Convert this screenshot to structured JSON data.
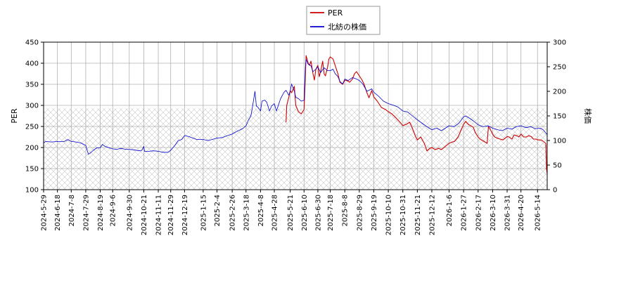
{
  "chart_data": {
    "type": "line",
    "y_left_label": "PER",
    "y_right_label": "株価",
    "y_left_lim": [
      100,
      450
    ],
    "y_left_ticks": [
      100,
      150,
      200,
      250,
      300,
      350,
      400,
      450
    ],
    "y_right_lim": [
      0,
      300
    ],
    "y_right_ticks": [
      0,
      50,
      100,
      150,
      200,
      250,
      300
    ],
    "x_lim": [
      "2024-05-29",
      "2026-05-28"
    ],
    "x_ticks": [
      "2024-5-29",
      "2024-6-18",
      "2024-7-8",
      "2024-7-29",
      "2024-8-19",
      "2024-9-6",
      "2024-9-30",
      "2024-10-21",
      "2024-11-11",
      "2024-11-29",
      "2024-12-19",
      "2025-1-15",
      "2025-2-4",
      "2025-2-26",
      "2025-3-18",
      "2025-4-8",
      "2025-4-28",
      "2025-5-21",
      "2025-6-10",
      "2025-6-30",
      "2025-7-18",
      "2025-8-8",
      "2025-8-29",
      "2025-9-19",
      "2025-10-10",
      "2025-10-31",
      "2025-11-21",
      "2025-12-12",
      "2026-1-6",
      "2026-1-27",
      "2026-2-17",
      "2026-3-10",
      "2026-3-31",
      "2026-4-20",
      "2026-5-14"
    ],
    "grid": true,
    "legend_placement": "top-center",
    "hatch_band_right_axis": [
      0,
      165
    ],
    "series": [
      {
        "name": "PER",
        "axis": "left",
        "color": "#cc0000",
        "points": [
          [
            "2025-5-15",
            260
          ],
          [
            "2025-5-16",
            300
          ],
          [
            "2025-5-19",
            320
          ],
          [
            "2025-5-21",
            335
          ],
          [
            "2025-5-23",
            330
          ],
          [
            "2025-5-27",
            345
          ],
          [
            "2025-5-29",
            300
          ],
          [
            "2025-6-2",
            285
          ],
          [
            "2025-6-6",
            280
          ],
          [
            "2025-6-10",
            290
          ],
          [
            "2025-6-12",
            370
          ],
          [
            "2025-6-13",
            418
          ],
          [
            "2025-6-16",
            400
          ],
          [
            "2025-6-18",
            395
          ],
          [
            "2025-6-20",
            405
          ],
          [
            "2025-6-23",
            375
          ],
          [
            "2025-6-25",
            360
          ],
          [
            "2025-6-27",
            385
          ],
          [
            "2025-6-30",
            395
          ],
          [
            "2025-7-2",
            368
          ],
          [
            "2025-7-4",
            380
          ],
          [
            "2025-7-7",
            405
          ],
          [
            "2025-7-9",
            375
          ],
          [
            "2025-7-11",
            370
          ],
          [
            "2025-7-14",
            390
          ],
          [
            "2025-7-16",
            410
          ],
          [
            "2025-7-18",
            415
          ],
          [
            "2025-7-22",
            410
          ],
          [
            "2025-7-25",
            395
          ],
          [
            "2025-7-29",
            375
          ],
          [
            "2025-8-1",
            355
          ],
          [
            "2025-8-5",
            350
          ],
          [
            "2025-8-8",
            360
          ],
          [
            "2025-8-12",
            358
          ],
          [
            "2025-8-15",
            355
          ],
          [
            "2025-8-19",
            362
          ],
          [
            "2025-8-22",
            375
          ],
          [
            "2025-8-25",
            380
          ],
          [
            "2025-8-29",
            370
          ],
          [
            "2025-9-2",
            360
          ],
          [
            "2025-9-5",
            350
          ],
          [
            "2025-9-9",
            330
          ],
          [
            "2025-9-12",
            318
          ],
          [
            "2025-9-16",
            335
          ],
          [
            "2025-9-19",
            320
          ],
          [
            "2025-9-24",
            310
          ],
          [
            "2025-9-30",
            295
          ],
          [
            "2025-10-6",
            290
          ],
          [
            "2025-10-10",
            285
          ],
          [
            "2025-10-15",
            280
          ],
          [
            "2025-10-20",
            272
          ],
          [
            "2025-10-24",
            265
          ],
          [
            "2025-10-28",
            258
          ],
          [
            "2025-10-31",
            252
          ],
          [
            "2025-11-5",
            255
          ],
          [
            "2025-11-10",
            260
          ],
          [
            "2025-11-14",
            245
          ],
          [
            "2025-11-18",
            228
          ],
          [
            "2025-11-21",
            218
          ],
          [
            "2025-11-26",
            225
          ],
          [
            "2025-12-1",
            210
          ],
          [
            "2025-12-5",
            192
          ],
          [
            "2025-12-9",
            198
          ],
          [
            "2025-12-12",
            200
          ],
          [
            "2025-12-17",
            195
          ],
          [
            "2025-12-22",
            198
          ],
          [
            "2025-12-26",
            195
          ],
          [
            "2026-1-6",
            210
          ],
          [
            "2026-1-9",
            212
          ],
          [
            "2026-1-14",
            215
          ],
          [
            "2026-1-19",
            225
          ],
          [
            "2026-1-23",
            240
          ],
          [
            "2026-1-27",
            255
          ],
          [
            "2026-1-30",
            262
          ],
          [
            "2026-2-3",
            255
          ],
          [
            "2026-2-6",
            252
          ],
          [
            "2026-2-10",
            248
          ],
          [
            "2026-2-13",
            235
          ],
          [
            "2026-2-17",
            225
          ],
          [
            "2026-2-20",
            220
          ],
          [
            "2026-2-25",
            215
          ],
          [
            "2026-3-2",
            210
          ],
          [
            "2026-3-4",
            250
          ],
          [
            "2026-3-6",
            245
          ],
          [
            "2026-3-10",
            232
          ],
          [
            "2026-3-13",
            225
          ],
          [
            "2026-3-17",
            222
          ],
          [
            "2026-3-21",
            220
          ],
          [
            "2026-3-25",
            218
          ],
          [
            "2026-3-31",
            226
          ],
          [
            "2026-4-3",
            225
          ],
          [
            "2026-4-7",
            220
          ],
          [
            "2026-4-10",
            230
          ],
          [
            "2026-4-14",
            228
          ],
          [
            "2026-4-17",
            225
          ],
          [
            "2026-4-20",
            232
          ],
          [
            "2026-4-24",
            225
          ],
          [
            "2026-4-28",
            225
          ],
          [
            "2026-5-1",
            228
          ],
          [
            "2026-5-5",
            226
          ],
          [
            "2026-5-8",
            220
          ],
          [
            "2026-5-12",
            220
          ],
          [
            "2026-5-14",
            218
          ],
          [
            "2026-5-19",
            218
          ],
          [
            "2026-5-22",
            215
          ],
          [
            "2026-5-26",
            210
          ],
          [
            "2026-5-27",
            150
          ],
          [
            "2026-5-28",
            138
          ]
        ]
      },
      {
        "name": "北紡の株価",
        "axis": "right",
        "color": "#0000cc",
        "points": [
          [
            "2024-5-29",
            95
          ],
          [
            "2024-6-1",
            98
          ],
          [
            "2024-6-10",
            97
          ],
          [
            "2024-6-18",
            98
          ],
          [
            "2024-6-28",
            98
          ],
          [
            "2024-7-3",
            102
          ],
          [
            "2024-7-8",
            98
          ],
          [
            "2024-7-15",
            97
          ],
          [
            "2024-7-22",
            95
          ],
          [
            "2024-7-29",
            90
          ],
          [
            "2024-7-31",
            80
          ],
          [
            "2024-8-2",
            72
          ],
          [
            "2024-8-5",
            75
          ],
          [
            "2024-8-9",
            80
          ],
          [
            "2024-8-14",
            85
          ],
          [
            "2024-8-19",
            85
          ],
          [
            "2024-8-22",
            92
          ],
          [
            "2024-8-26",
            88
          ],
          [
            "2024-8-30",
            86
          ],
          [
            "2024-9-6",
            83
          ],
          [
            "2024-9-12",
            82
          ],
          [
            "2024-9-18",
            84
          ],
          [
            "2024-9-25",
            82
          ],
          [
            "2024-9-30",
            82
          ],
          [
            "2024-10-7",
            81
          ],
          [
            "2024-10-14",
            79
          ],
          [
            "2024-10-18",
            80
          ],
          [
            "2024-10-21",
            88
          ],
          [
            "2024-10-22",
            78
          ],
          [
            "2024-10-28",
            78
          ],
          [
            "2024-11-4",
            79
          ],
          [
            "2024-11-11",
            78
          ],
          [
            "2024-11-18",
            76
          ],
          [
            "2024-11-25",
            76
          ],
          [
            "2024-11-29",
            80
          ],
          [
            "2024-12-5",
            90
          ],
          [
            "2024-12-10",
            100
          ],
          [
            "2024-12-15",
            102
          ],
          [
            "2024-12-19",
            110
          ],
          [
            "2024-12-25",
            108
          ],
          [
            "2025-1-6",
            102
          ],
          [
            "2025-1-15",
            102
          ],
          [
            "2025-1-22",
            100
          ],
          [
            "2025-1-28",
            102
          ],
          [
            "2025-2-4",
            105
          ],
          [
            "2025-2-12",
            106
          ],
          [
            "2025-2-19",
            110
          ],
          [
            "2025-2-26",
            113
          ],
          [
            "2025-3-4",
            118
          ],
          [
            "2025-3-10",
            122
          ],
          [
            "2025-3-14",
            125
          ],
          [
            "2025-3-18",
            130
          ],
          [
            "2025-3-21",
            140
          ],
          [
            "2025-3-25",
            150
          ],
          [
            "2025-3-27",
            165
          ],
          [
            "2025-3-31",
            200
          ],
          [
            "2025-4-2",
            170
          ],
          [
            "2025-4-4",
            168
          ],
          [
            "2025-4-8",
            160
          ],
          [
            "2025-4-10",
            180
          ],
          [
            "2025-4-14",
            182
          ],
          [
            "2025-4-17",
            178
          ],
          [
            "2025-4-21",
            160
          ],
          [
            "2025-4-24",
            170
          ],
          [
            "2025-4-28",
            175
          ],
          [
            "2025-5-1",
            160
          ],
          [
            "2025-5-7",
            185
          ],
          [
            "2025-5-12",
            198
          ],
          [
            "2025-5-15",
            202
          ],
          [
            "2025-5-19",
            192
          ],
          [
            "2025-5-21",
            200
          ],
          [
            "2025-5-23",
            215
          ],
          [
            "2025-5-27",
            200
          ],
          [
            "2025-5-29",
            188
          ],
          [
            "2025-6-2",
            185
          ],
          [
            "2025-6-6",
            180
          ],
          [
            "2025-6-10",
            182
          ],
          [
            "2025-6-12",
            250
          ],
          [
            "2025-6-13",
            265
          ],
          [
            "2025-6-16",
            255
          ],
          [
            "2025-6-20",
            252
          ],
          [
            "2025-6-23",
            240
          ],
          [
            "2025-6-27",
            245
          ],
          [
            "2025-6-30",
            250
          ],
          [
            "2025-7-4",
            238
          ],
          [
            "2025-7-9",
            248
          ],
          [
            "2025-7-14",
            242
          ],
          [
            "2025-7-18",
            242
          ],
          [
            "2025-7-22",
            245
          ],
          [
            "2025-7-25",
            236
          ],
          [
            "2025-7-29",
            230
          ],
          [
            "2025-8-1",
            220
          ],
          [
            "2025-8-5",
            215
          ],
          [
            "2025-8-8",
            225
          ],
          [
            "2025-8-13",
            222
          ],
          [
            "2025-8-19",
            228
          ],
          [
            "2025-8-25",
            225
          ],
          [
            "2025-8-29",
            222
          ],
          [
            "2025-9-3",
            215
          ],
          [
            "2025-9-9",
            200
          ],
          [
            "2025-9-16",
            205
          ],
          [
            "2025-9-19",
            198
          ],
          [
            "2025-9-26",
            190
          ],
          [
            "2025-10-3",
            180
          ],
          [
            "2025-10-10",
            175
          ],
          [
            "2025-10-17",
            172
          ],
          [
            "2025-10-24",
            168
          ],
          [
            "2025-10-31",
            160
          ],
          [
            "2025-11-7",
            158
          ],
          [
            "2025-11-14",
            150
          ],
          [
            "2025-11-21",
            142
          ],
          [
            "2025-11-28",
            135
          ],
          [
            "2025-12-5",
            128
          ],
          [
            "2025-12-12",
            122
          ],
          [
            "2025-12-19",
            125
          ],
          [
            "2025-12-26",
            120
          ],
          [
            "2026-1-6",
            130
          ],
          [
            "2026-1-13",
            128
          ],
          [
            "2026-1-20",
            135
          ],
          [
            "2026-1-27",
            148
          ],
          [
            "2026-1-30",
            150
          ],
          [
            "2026-2-5",
            145
          ],
          [
            "2026-2-10",
            140
          ],
          [
            "2026-2-17",
            132
          ],
          [
            "2026-2-24",
            128
          ],
          [
            "2026-3-3",
            130
          ],
          [
            "2026-3-6",
            128
          ],
          [
            "2026-3-10",
            125
          ],
          [
            "2026-3-17",
            122
          ],
          [
            "2026-3-24",
            120
          ],
          [
            "2026-3-31",
            125
          ],
          [
            "2026-4-7",
            123
          ],
          [
            "2026-4-13",
            128
          ],
          [
            "2026-4-20",
            130
          ],
          [
            "2026-4-27",
            126
          ],
          [
            "2026-5-4",
            128
          ],
          [
            "2026-5-11",
            124
          ],
          [
            "2026-5-18",
            125
          ],
          [
            "2026-5-22",
            122
          ],
          [
            "2026-5-28",
            112
          ]
        ]
      }
    ]
  }
}
